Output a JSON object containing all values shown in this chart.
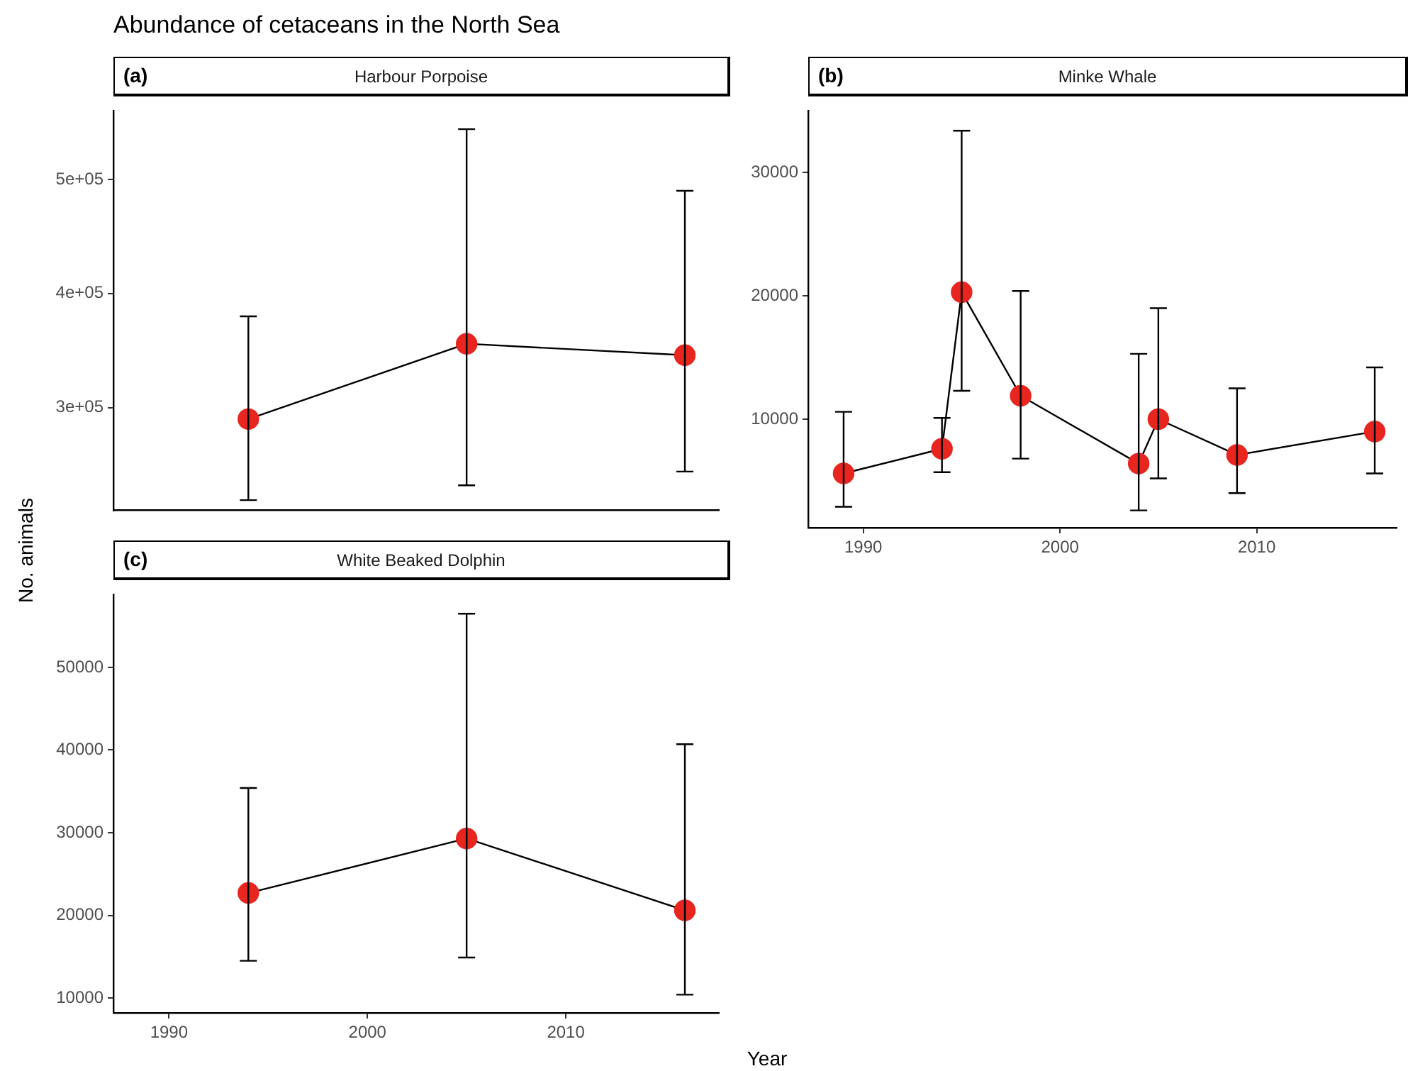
{
  "chart_data": [
    {
      "type": "line",
      "title": "Harbour Porpoise",
      "annotations": [
        "(a)",
        "Abundance of cetaceans in the North Sea"
      ],
      "ylabel": "No. animals",
      "x": [
        1994,
        2005,
        2016
      ],
      "xlim": [
        1987.2,
        2017.7
      ],
      "xticks": [
        1990,
        2000,
        2010
      ],
      "ylim": [
        210000,
        560000
      ],
      "yticks": [
        {
          "value": 300000,
          "label": "3e+05"
        },
        {
          "value": 400000,
          "label": "4e+05"
        },
        {
          "value": 500000,
          "label": "5e+05"
        }
      ],
      "tick_labels": "y",
      "grid": false,
      "marker": "circle",
      "line_style": "solid",
      "series": [
        {
          "color": "#e8251f",
          "values": [
            290000,
            356000,
            346000
          ],
          "errors": [
            [
              219000,
              380000
            ],
            [
              232000,
              544000
            ],
            [
              244000,
              490000
            ]
          ]
        }
      ]
    },
    {
      "type": "line",
      "title": "Minke Whale",
      "annotations": [
        "(b)"
      ],
      "x": [
        1989,
        1994,
        1995,
        1998,
        2004,
        2005,
        2009,
        2016
      ],
      "xlim": [
        1987.2,
        2017.1
      ],
      "xticks": [
        1990,
        2000,
        2010
      ],
      "ylim": [
        1200,
        35000
      ],
      "yticks": [
        10000,
        20000,
        30000
      ],
      "grid": false,
      "marker": "circle",
      "line_style": "solid",
      "series": [
        {
          "color": "#e8251f",
          "values": [
            5600,
            7600,
            20300,
            11900,
            6400,
            10000,
            7100,
            9000
          ],
          "errors": [
            [
              2900,
              10600
            ],
            [
              5700,
              10100
            ],
            [
              12300,
              33400
            ],
            [
              6800,
              20400
            ],
            [
              2600,
              15300
            ],
            [
              5200,
              19000
            ],
            [
              4000,
              12500
            ],
            [
              5600,
              14200
            ]
          ]
        }
      ]
    },
    {
      "type": "line",
      "title": "White Beaked Dolphin",
      "annotations": [
        "(c)"
      ],
      "xlabel": "Year",
      "x": [
        1994,
        2005,
        2016
      ],
      "xlim": [
        1987.2,
        2017.7
      ],
      "xticks": [
        1990,
        2000,
        2010
      ],
      "ylim": [
        8200,
        58800
      ],
      "yticks": [
        10000,
        20000,
        30000,
        40000,
        50000
      ],
      "grid": false,
      "marker": "circle",
      "line_style": "solid",
      "series": [
        {
          "color": "#e8251f",
          "values": [
            22700,
            29300,
            20600
          ],
          "errors": [
            [
              14500,
              35400
            ],
            [
              14900,
              56500
            ],
            [
              10400,
              40700
            ]
          ]
        }
      ]
    }
  ]
}
